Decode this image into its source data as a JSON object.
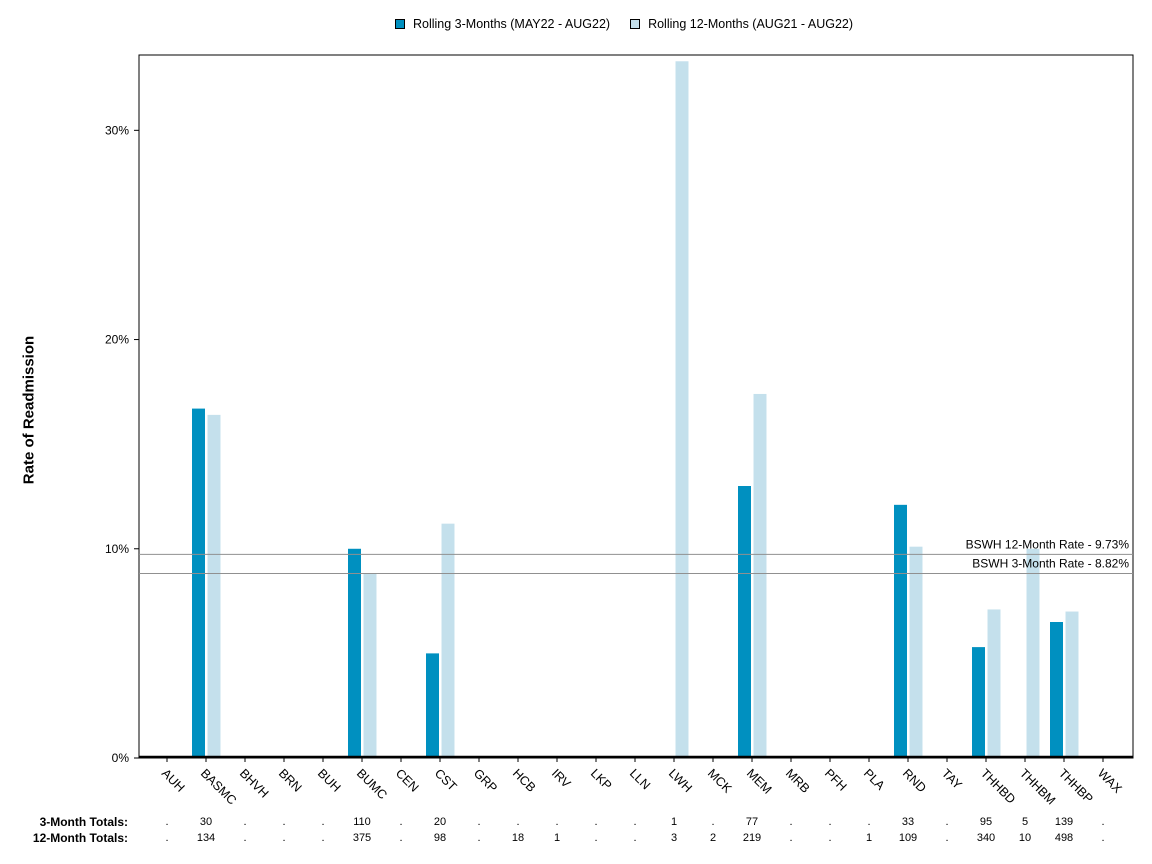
{
  "legend": {
    "series_3": "Rolling 3-Months (MAY22 - AUG22)",
    "series_12": "Rolling 12-Months (AUG21 - AUG22)"
  },
  "ylabel": "Rate of Readmission",
  "totals": {
    "label_3": "3-Month Totals:",
    "label_12": "12-Month Totals:",
    "three_month": [
      ".",
      "30",
      ".",
      ".",
      ".",
      "110",
      ".",
      "20",
      ".",
      ".",
      ".",
      ".",
      ".",
      "1",
      ".",
      "77",
      ".",
      ".",
      ".",
      "33",
      ".",
      "95",
      "5",
      "139",
      "."
    ],
    "twelve_month": [
      ".",
      "134",
      ".",
      ".",
      ".",
      "375",
      ".",
      "98",
      ".",
      "18",
      "1",
      ".",
      ".",
      "3",
      "2",
      "219",
      ".",
      ".",
      "1",
      "109",
      ".",
      "340",
      "10",
      "498",
      "."
    ]
  },
  "colors": {
    "series_3": "#0090c0",
    "series_12": "#c4e0ec",
    "reference_line": "#909090"
  },
  "chart_data": {
    "type": "bar",
    "categories": [
      "AUH",
      "BASMC",
      "BHVH",
      "BRN",
      "BUH",
      "BUMC",
      "CEN",
      "CST",
      "GRP",
      "HCB",
      "IRV",
      "LKP",
      "LLN",
      "LWH",
      "MCK",
      "MEM",
      "MRB",
      "PFH",
      "PLA",
      "RND",
      "TAY",
      "THHBD",
      "THHBM",
      "THHBP",
      "WAX"
    ],
    "series": [
      {
        "name": "Rolling 3-Months (MAY22 - AUG22)",
        "values": [
          0,
          16.7,
          0,
          0,
          0,
          10.0,
          0,
          5.0,
          0,
          0,
          0,
          0,
          0,
          0,
          0,
          13.0,
          0,
          0,
          0,
          12.1,
          0,
          5.3,
          0,
          6.5,
          0
        ]
      },
      {
        "name": "Rolling 12-Months (AUG21 - AUG22)",
        "values": [
          0,
          16.4,
          0,
          0,
          0,
          8.8,
          0,
          11.2,
          0,
          0,
          0,
          0,
          0,
          33.3,
          0,
          17.4,
          0,
          0,
          0,
          10.1,
          0,
          7.1,
          10.0,
          7.0,
          0
        ]
      }
    ],
    "yticks": [
      "0%",
      "10%",
      "20%",
      "30%"
    ],
    "ytick_values": [
      0,
      10,
      20,
      30
    ],
    "ylim": [
      0,
      33.6
    ],
    "reference_lines": [
      {
        "label": "BSWH 12-Month Rate - 9.73%",
        "value": 9.73
      },
      {
        "label": "BSWH  3-Month Rate - 8.82%",
        "value": 8.82
      }
    ],
    "ylabel": "Rate of Readmission",
    "grid": false,
    "legend_position": "top-center"
  }
}
